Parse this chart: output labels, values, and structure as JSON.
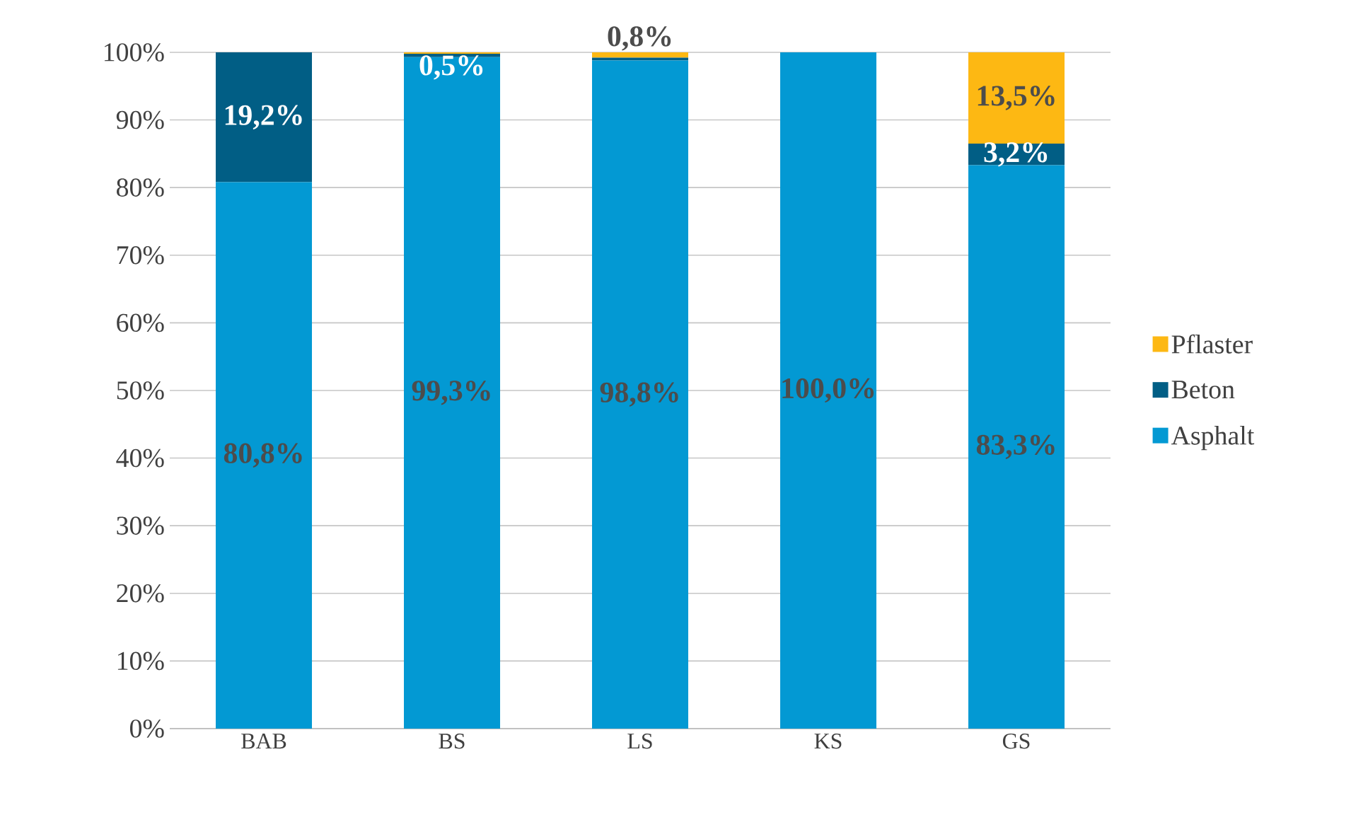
{
  "chart_data": {
    "type": "bar",
    "stacked": true,
    "categories": [
      "BAB",
      "BS",
      "LS",
      "KS",
      "GS"
    ],
    "series": [
      {
        "name": "Asphalt",
        "color": "#0399d3",
        "values": [
          80.8,
          99.3,
          98.8,
          100.0,
          83.3
        ],
        "value_labels": [
          "80,8%",
          "99,3%",
          "98,8%",
          "100,0%",
          "83,3%"
        ]
      },
      {
        "name": "Beton",
        "color": "#015e85",
        "values": [
          19.2,
          0.5,
          0.4,
          0,
          3.2
        ],
        "value_labels": [
          "19,2%",
          "0,5%",
          null,
          null,
          "3,2%"
        ]
      },
      {
        "name": "Pflaster",
        "color": "#fdb813",
        "values": [
          0,
          0.2,
          0.8,
          0,
          13.5
        ],
        "value_labels": [
          null,
          null,
          "0,8%",
          null,
          "13,5%"
        ]
      }
    ],
    "ylim": [
      0,
      100
    ],
    "yticks": [
      {
        "value": 0,
        "label": "0%"
      },
      {
        "value": 10,
        "label": "10%"
      },
      {
        "value": 20,
        "label": "20%"
      },
      {
        "value": 30,
        "label": "30%"
      },
      {
        "value": 40,
        "label": "40%"
      },
      {
        "value": 50,
        "label": "50%"
      },
      {
        "value": 60,
        "label": "60%"
      },
      {
        "value": 70,
        "label": "70%"
      },
      {
        "value": 80,
        "label": "80%"
      },
      {
        "value": 90,
        "label": "90%"
      },
      {
        "value": 100,
        "label": "100%"
      }
    ],
    "grid": "y",
    "legend": "right"
  }
}
